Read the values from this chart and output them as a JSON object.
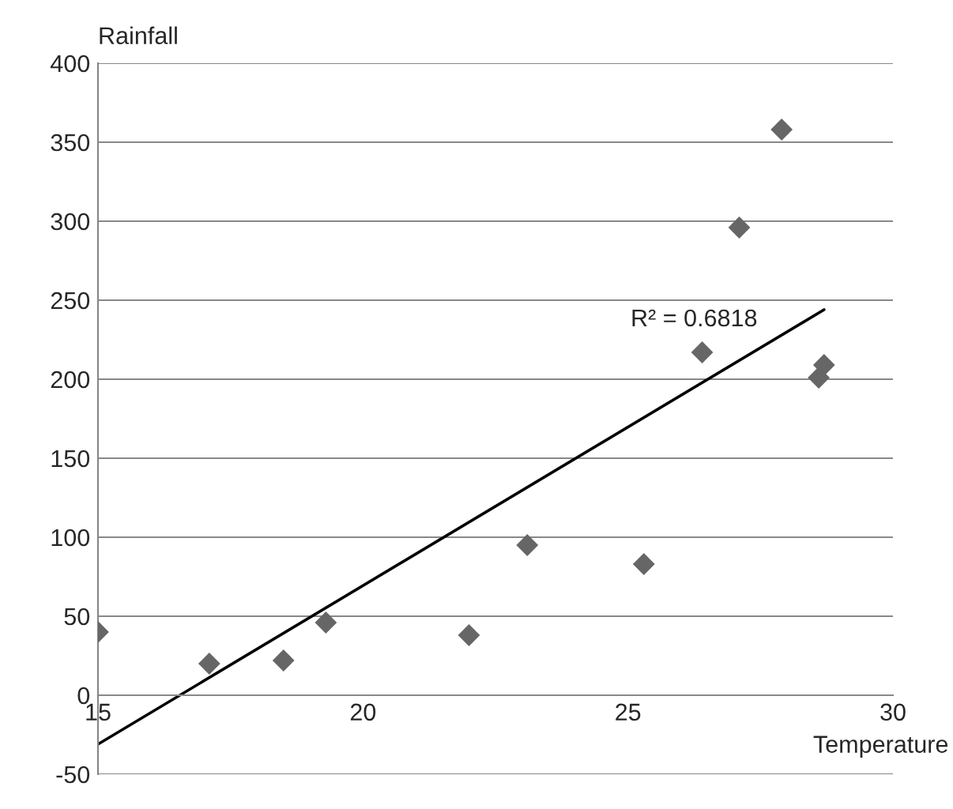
{
  "chart_data": {
    "type": "scatter",
    "xlabel": "Temperature",
    "ylabel": "Rainfall",
    "xlim": [
      15,
      30
    ],
    "xticks": [
      15,
      20,
      25,
      30
    ],
    "ylim": [
      -50,
      400
    ],
    "yticks": [
      -50,
      0,
      50,
      100,
      150,
      200,
      250,
      300,
      350,
      400
    ],
    "grid": "y",
    "marker": "diamond",
    "series": [
      {
        "color": "#666666",
        "x": [
          15,
          17.1,
          18.5,
          19.3,
          22.0,
          23.1,
          25.3,
          26.4,
          27.1,
          27.9,
          28.6,
          28.7
        ],
        "values": [
          40,
          20,
          22,
          46,
          38,
          95,
          83,
          217,
          296,
          358,
          201,
          209
        ]
      },
      {
        "type": "line",
        "color": "#000000",
        "marker": "none",
        "x": [
          15,
          28.7
        ],
        "values": [
          -31,
          244
        ]
      }
    ],
    "annotations": [
      "R² = 0.6818"
    ]
  }
}
